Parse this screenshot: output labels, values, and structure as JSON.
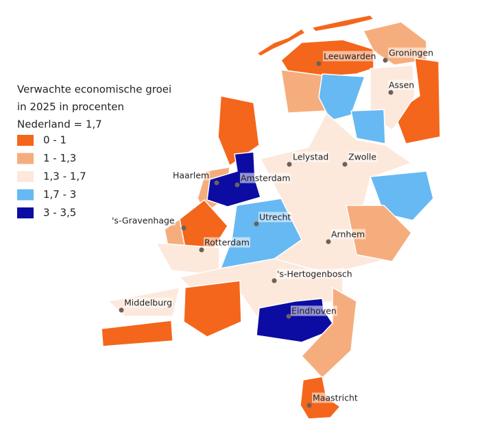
{
  "legend": {
    "title": [
      "Verwachte economische groei",
      "in 2025 in procenten",
      "Nederland = 1,7"
    ],
    "items": [
      {
        "label": "0 - 1",
        "color": "#f4661b"
      },
      {
        "label": "1 - 1,3",
        "color": "#f6ad7d"
      },
      {
        "label": "1,3 - 1,7",
        "color": "#fde8dc"
      },
      {
        "label": "1,7 - 3",
        "color": "#66b9f2"
      },
      {
        "label": "3 - 3,5",
        "color": "#0c0ca2"
      }
    ]
  },
  "cities": [
    {
      "name": "Leeuwarden"
    },
    {
      "name": "Groningen"
    },
    {
      "name": "Assen"
    },
    {
      "name": "Lelystad"
    },
    {
      "name": "Zwolle"
    },
    {
      "name": "Haarlem"
    },
    {
      "name": "Amsterdam"
    },
    {
      "name": "'s-Gravenhage"
    },
    {
      "name": "Utrecht"
    },
    {
      "name": "Rotterdam"
    },
    {
      "name": "Arnhem"
    },
    {
      "name": "'s-Hertogenbosch"
    },
    {
      "name": "Middelburg"
    },
    {
      "name": "Eindhoven"
    },
    {
      "name": "Maastricht"
    }
  ]
}
